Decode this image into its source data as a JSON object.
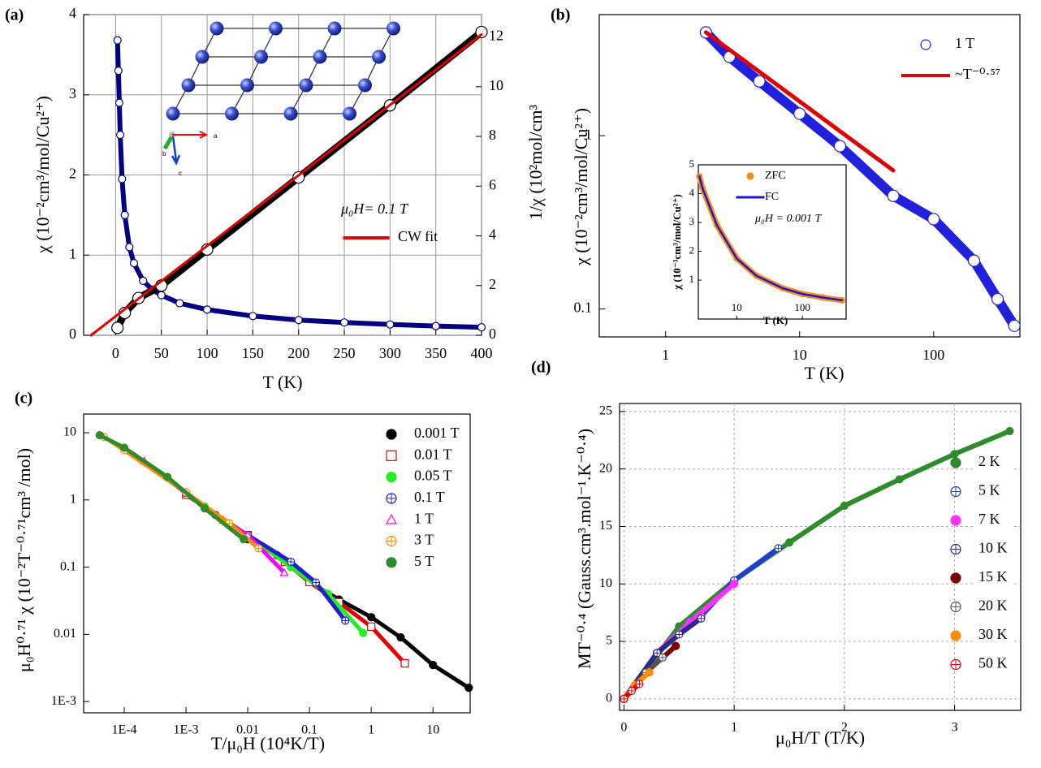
{
  "chart_data": [
    {
      "type": "line",
      "panel_label": "(a)",
      "xlabel": "T (K)",
      "ylabel": "χ (10⁻²cm³/mol/Cu²⁺)",
      "y2label": "1/χ (10²mol/cm³",
      "xlim": [
        -35,
        400
      ],
      "ylim": [
        0,
        4
      ],
      "y2lim": [
        0,
        12.9
      ],
      "xticks": [
        0,
        50,
        100,
        150,
        200,
        250,
        300,
        350,
        400
      ],
      "yticks": [
        0,
        1,
        2,
        3,
        4
      ],
      "y2ticks": [
        0,
        2,
        4,
        6,
        8,
        10,
        12
      ],
      "grid": true,
      "annotations": [
        "μ₀H= 0.1 T"
      ],
      "inset_labels": [
        "a",
        "b",
        "c"
      ],
      "series": [
        {
          "color": "#000080",
          "marker": "circle-open",
          "line_width": 6,
          "x": [
            2,
            3,
            4,
            5,
            7,
            10,
            15,
            20,
            30,
            40,
            50,
            70,
            100,
            150,
            200,
            250,
            300,
            350,
            400
          ],
          "values": [
            3.68,
            3.3,
            2.9,
            2.5,
            1.95,
            1.5,
            1.1,
            0.9,
            0.68,
            0.57,
            0.5,
            0.4,
            0.32,
            0.24,
            0.19,
            0.16,
            0.135,
            0.115,
            0.1
          ]
        },
        {
          "color": "#000000",
          "axis": "y2",
          "line_width": 9,
          "marker": "circle-open",
          "x": [
            2,
            10,
            25,
            50,
            100,
            200,
            300,
            400
          ],
          "values": [
            0.3,
            0.9,
            1.5,
            2.0,
            3.45,
            6.35,
            9.25,
            12.2
          ]
        },
        {
          "name": "CW fit",
          "color": "#e00000",
          "axis": "y2",
          "line_width": 3,
          "x": [
            -27,
            400
          ],
          "values": [
            0,
            12.1
          ]
        }
      ]
    },
    {
      "type": "scatter",
      "panel_label": "(b)",
      "xlabel": "T (K)",
      "ylabel": "χ (10⁻²cm³/mol/Cu²⁺)",
      "xscale": "log",
      "yscale": "log",
      "xlim": [
        0.32,
        440
      ],
      "ylim": [
        0.069,
        5
      ],
      "xticks": [
        1,
        10,
        100
      ],
      "yticks": [
        0.1,
        1
      ],
      "series": [
        {
          "name": "1 T",
          "color": "#2020dd",
          "marker": "circle-open",
          "line_width": 12,
          "x": [
            2,
            3,
            5,
            10,
            20,
            50,
            100,
            200,
            300,
            400
          ],
          "values": [
            3.95,
            2.85,
            2.06,
            1.34,
            0.87,
            0.45,
            0.33,
            0.19,
            0.114,
            0.08
          ]
        },
        {
          "name": "~T⁻⁰·⁵⁷",
          "color": "#e00000",
          "line_width": 5,
          "x": [
            2,
            50
          ],
          "values": [
            3.95,
            0.63
          ]
        }
      ]
    },
    {
      "type": "line",
      "xlabel": "T (K)",
      "ylabel": "χ (10⁻³cm³/mol/Cu²⁺)",
      "xscale": "log",
      "xlim": [
        2.6,
        464
      ],
      "ylim": [
        -0.35,
        5
      ],
      "xticks": [
        10,
        100
      ],
      "yticks": [
        1,
        2,
        3,
        4,
        5
      ],
      "annotations": [
        "μ₀H = 0.001 T"
      ],
      "series": [
        {
          "name": "ZFC",
          "color": "#ff8c1a",
          "marker": "circle",
          "line_width": 7,
          "x": [
            2.7,
            3,
            5,
            10,
            20,
            50,
            100,
            200,
            400
          ],
          "values": [
            4.6,
            4.2,
            2.9,
            1.75,
            1.15,
            0.72,
            0.52,
            0.4,
            0.3
          ]
        },
        {
          "name": "FC",
          "color": "#1a1acc",
          "line_width": 2.5,
          "x": [
            2.7,
            3,
            5,
            10,
            20,
            50,
            100,
            200,
            400
          ],
          "values": [
            4.6,
            4.2,
            2.9,
            1.75,
            1.15,
            0.72,
            0.52,
            0.4,
            0.3
          ]
        }
      ]
    },
    {
      "type": "scatter",
      "panel_label": "(c)",
      "xlabel": "T/μ₀H (10⁴K/T)",
      "ylabel": "μ₀H⁰·⁷¹ χ (10⁻²T⁻⁰·⁷¹cm³ /mol)",
      "xscale": "log",
      "yscale": "log",
      "xlim": [
        2.2e-05,
        40
      ],
      "ylim": [
        0.00068,
        19
      ],
      "xticks": [
        {
          "value": 0.0001,
          "label": "1E-4"
        },
        {
          "value": 0.001,
          "label": "1E-3"
        },
        0.01,
        0.1,
        1,
        10
      ],
      "yticks": [
        10,
        1,
        0.1,
        0.01,
        {
          "value": 0.001,
          "label": "1E-3"
        }
      ],
      "series": [
        {
          "name": "0.001 T",
          "color": "#000000",
          "marker": "circle",
          "line_width": 5,
          "x": [
            0.01,
            0.03,
            0.1,
            0.3,
            1,
            3,
            10,
            38
          ],
          "values": [
            0.26,
            0.15,
            0.06,
            0.033,
            0.018,
            0.009,
            0.0035,
            0.0016
          ]
        },
        {
          "name": "0.01 T",
          "color": "#e00000",
          "marker": "square-open",
          "line_width": 5,
          "x": [
            0.001,
            0.01,
            0.04,
            0.1,
            0.3,
            1,
            3.5
          ],
          "values": [
            1.2,
            0.3,
            0.12,
            0.06,
            0.03,
            0.013,
            0.0037
          ]
        },
        {
          "name": "0.05 T",
          "color": "#22ee22",
          "marker": "circle",
          "line_width": 5,
          "x": [
            0.002,
            0.01,
            0.05,
            0.2,
            0.74
          ],
          "values": [
            0.8,
            0.3,
            0.1,
            0.04,
            0.0105
          ]
        },
        {
          "name": "0.1 T",
          "color": "#1f1fcc",
          "marker": "circle-cross",
          "line_width": 5,
          "x": [
            0.003,
            0.01,
            0.05,
            0.127,
            0.38
          ],
          "values": [
            0.6,
            0.3,
            0.12,
            0.059,
            0.016
          ]
        },
        {
          "name": "1 T",
          "color": "#ff00ff",
          "marker": "triangle-open",
          "line_width": 5,
          "x": [
            0.00021,
            0.001,
            0.004,
            0.01,
            0.039
          ],
          "values": [
            3.8,
            1.25,
            0.5,
            0.3,
            0.083
          ]
        },
        {
          "name": "3 T",
          "color": "#ff8c00",
          "marker": "circle-cross",
          "line_width": 5,
          "x": [
            4.7e-05,
            0.0001,
            0.001,
            0.005,
            0.015
          ],
          "values": [
            8.7,
            5.5,
            1.3,
            0.45,
            0.19
          ]
        },
        {
          "name": "5 T",
          "color": "#2e8b2e",
          "marker": "circle",
          "line_width": 5,
          "x": [
            4e-05,
            0.0001,
            0.0005,
            0.002,
            0.0086
          ],
          "values": [
            9.2,
            6,
            2.2,
            0.75,
            0.26
          ]
        }
      ]
    },
    {
      "type": "scatter",
      "panel_label": "(d)",
      "xlabel": "μ₀H/T  (T/K)",
      "ylabel": "MT⁻⁰·⁴ (Gauss.cm³.mol⁻¹.K⁻⁰·⁴)",
      "xlim": [
        -0.04,
        3.6
      ],
      "ylim": [
        -1,
        25.7
      ],
      "xticks": [
        0,
        1,
        2,
        3
      ],
      "yticks": [
        0,
        5,
        10,
        15,
        20,
        25
      ],
      "grid": true,
      "grid_style": "dashed",
      "series": [
        {
          "name": "2 K",
          "color": "#2e8b2e",
          "marker": "circle",
          "line_width": 6,
          "x": [
            0,
            0.5,
            1,
            1.5,
            2,
            2.5,
            3,
            3.5
          ],
          "values": [
            0,
            6.3,
            10.3,
            13.6,
            16.8,
            19.1,
            21.3,
            23.3
          ]
        },
        {
          "name": "5 K",
          "color": "#1f3fcc",
          "marker": "circle-cross",
          "line_width": 6,
          "x": [
            0,
            0.3,
            0.7,
            1,
            1.4
          ],
          "values": [
            0,
            4,
            7.2,
            10.3,
            13.1
          ]
        },
        {
          "name": "7 K",
          "color": "#ff33ff",
          "marker": "circle",
          "line_width": 6,
          "x": [
            0,
            0.3,
            0.6,
            1
          ],
          "values": [
            0,
            4,
            6.7,
            10
          ]
        },
        {
          "name": "10 K",
          "color": "#2a2a8a",
          "marker": "circle-cross",
          "line_width": 6,
          "x": [
            0,
            0.3,
            0.5,
            0.7
          ],
          "values": [
            0,
            4,
            5.6,
            7
          ]
        },
        {
          "name": "15 K",
          "color": "#7a0000",
          "marker": "circle",
          "line_width": 6,
          "x": [
            0,
            0.2,
            0.47
          ],
          "values": [
            0,
            2.3,
            4.6
          ]
        },
        {
          "name": "20 K",
          "color": "#555555",
          "marker": "circle-cross",
          "line_width": 6,
          "x": [
            0,
            0.2,
            0.35
          ],
          "values": [
            0,
            2.3,
            3.6
          ]
        },
        {
          "name": "30 K",
          "color": "#ff8c00",
          "marker": "circle",
          "line_width": 6,
          "x": [
            0,
            0.1,
            0.23
          ],
          "values": [
            0,
            1.2,
            2.3
          ]
        },
        {
          "name": "50 K",
          "color": "#e00000",
          "marker": "circle-cross",
          "line_width": 6,
          "x": [
            0,
            0.07,
            0.14
          ],
          "values": [
            0,
            0.7,
            1.3
          ]
        }
      ]
    }
  ]
}
